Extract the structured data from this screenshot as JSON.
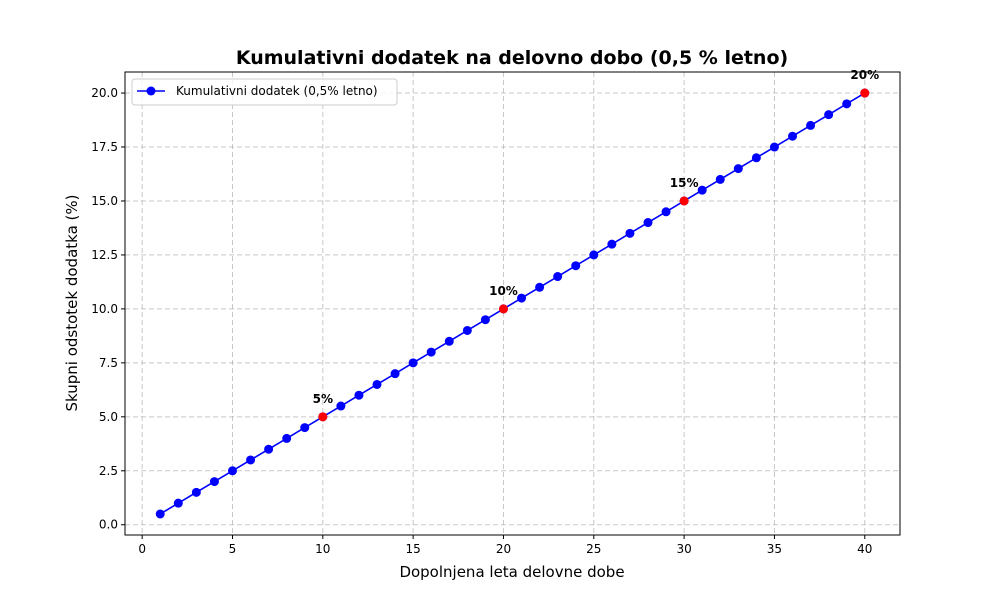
{
  "chart_data": {
    "type": "line",
    "title": "Kumulativni dodatek na delovno dobo (0,5 % letno)",
    "xlabel": "Dopolnjena leta delovne dobe",
    "ylabel": "Skupni odstotek dodatka (%)",
    "xlim": [
      -0.95,
      41.95
    ],
    "ylim": [
      -0.475,
      20.975
    ],
    "xticks": [
      0,
      5,
      10,
      15,
      20,
      25,
      30,
      35,
      40
    ],
    "xtick_labels": [
      "0",
      "5",
      "10",
      "15",
      "20",
      "25",
      "30",
      "35",
      "40"
    ],
    "yticks": [
      0,
      2.5,
      5,
      7.5,
      10,
      12.5,
      15,
      17.5,
      20
    ],
    "ytick_labels": [
      "0.0",
      "2.5",
      "5.0",
      "7.5",
      "10.0",
      "12.5",
      "15.0",
      "17.5",
      "20.0"
    ],
    "grid": true,
    "legend_placement": "upper-left",
    "series": [
      {
        "name": "Kumulativni dodatek (0,5% letno)",
        "color": "#0000ff",
        "marker": "circle",
        "x": [
          1,
          2,
          3,
          4,
          5,
          6,
          7,
          8,
          9,
          10,
          11,
          12,
          13,
          14,
          15,
          16,
          17,
          18,
          19,
          20,
          21,
          22,
          23,
          24,
          25,
          26,
          27,
          28,
          29,
          30,
          31,
          32,
          33,
          34,
          35,
          36,
          37,
          38,
          39,
          40
        ],
        "y": [
          0.5,
          1.0,
          1.5,
          2.0,
          2.5,
          3.0,
          3.5,
          4.0,
          4.5,
          5.0,
          5.5,
          6.0,
          6.5,
          7.0,
          7.5,
          8.0,
          8.5,
          9.0,
          9.5,
          10.0,
          10.5,
          11.0,
          11.5,
          12.0,
          12.5,
          13.0,
          13.5,
          14.0,
          14.5,
          15.0,
          15.5,
          16.0,
          16.5,
          17.0,
          17.5,
          18.0,
          18.5,
          19.0,
          19.5,
          20.0
        ]
      }
    ],
    "highlights": {
      "color": "#ff0000",
      "points": [
        {
          "x": 10,
          "y": 5,
          "label": "5%"
        },
        {
          "x": 20,
          "y": 10,
          "label": "10%"
        },
        {
          "x": 30,
          "y": 15,
          "label": "15%"
        },
        {
          "x": 40,
          "y": 20,
          "label": "20%"
        }
      ]
    }
  }
}
